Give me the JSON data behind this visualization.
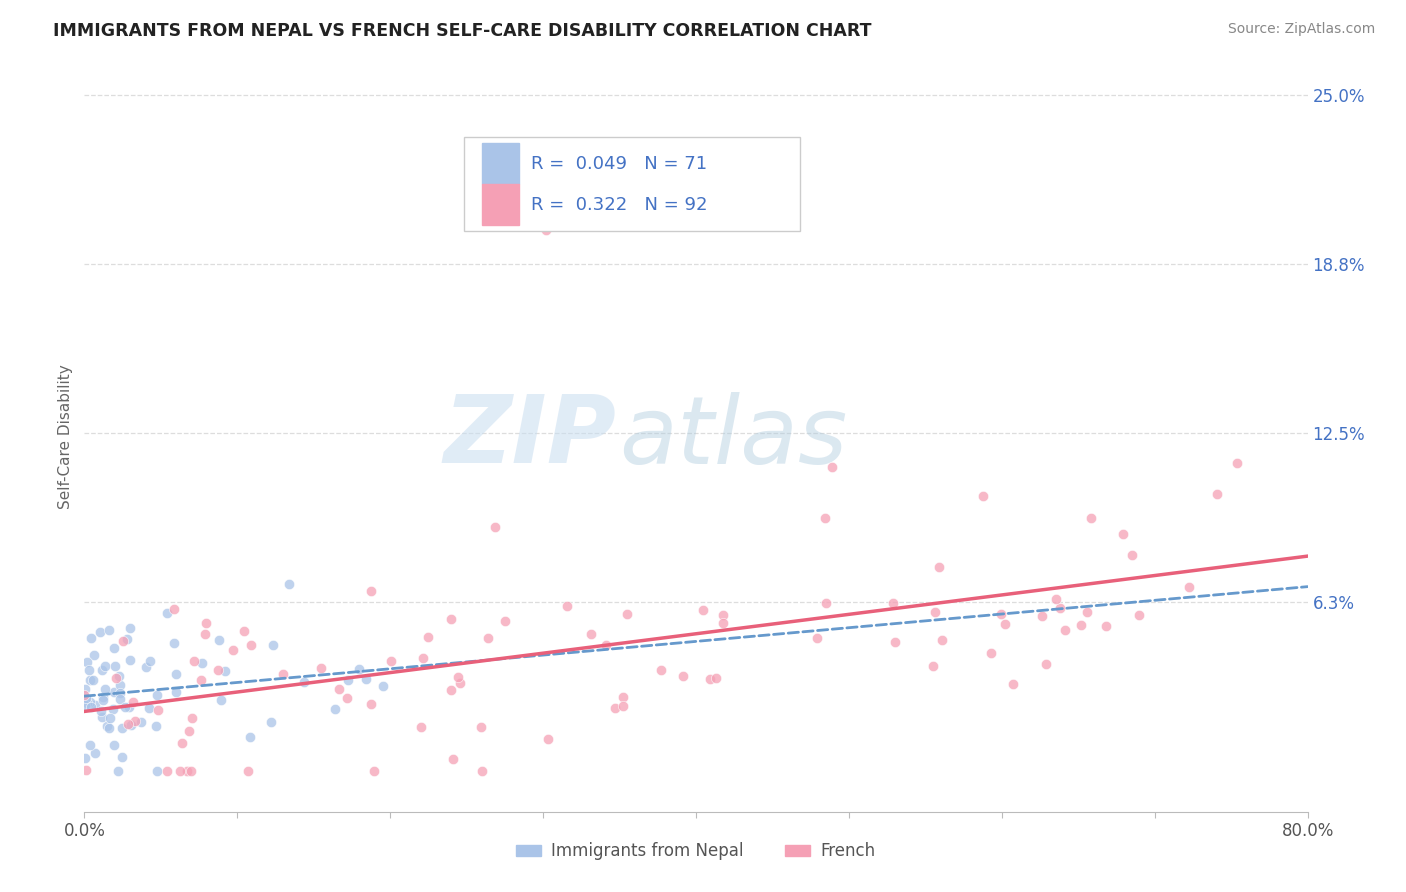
{
  "title": "IMMIGRANTS FROM NEPAL VS FRENCH SELF-CARE DISABILITY CORRELATION CHART",
  "source": "Source: ZipAtlas.com",
  "ylabel": "Self-Care Disability",
  "yticks": [
    0.0,
    0.0625,
    0.125,
    0.1875,
    0.25
  ],
  "ytick_labels": [
    "",
    "6.3%",
    "12.5%",
    "18.8%",
    "25.0%"
  ],
  "xmin": 0.0,
  "xmax": 0.8,
  "ymin": -0.015,
  "ymax": 0.262,
  "legend_r1": "0.049",
  "legend_n1": "71",
  "legend_r2": "0.322",
  "legend_n2": "92",
  "label1": "Immigrants from Nepal",
  "label2": "French",
  "color1": "#aac4e8",
  "color2": "#f5a0b5",
  "trendline1_color": "#6699cc",
  "trendline2_color": "#e8607a",
  "watermark_zip": "ZIP",
  "watermark_atlas": "atlas",
  "background_color": "#ffffff",
  "grid_color": "#dddddd",
  "axis_label_color": "#4472c4",
  "title_color": "#222222",
  "source_color": "#888888",
  "ylabel_color": "#666666"
}
